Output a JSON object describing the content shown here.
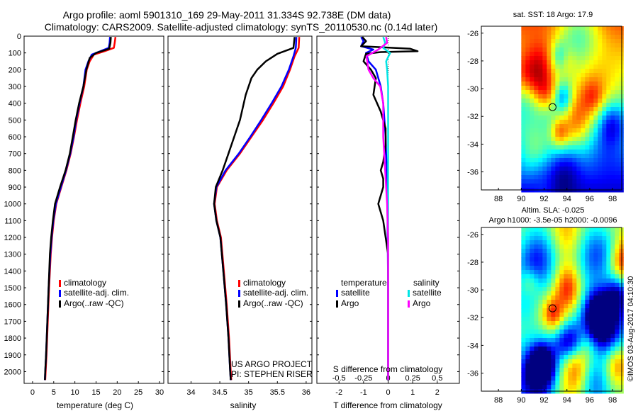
{
  "title_line1": "Argo profile: aoml 5901310_169 29-May-2011 31.334S 92.738E (DM data)",
  "title_line2": "Climatology: CARS2009. Satellite-adjusted climatology: synTS_20110530.nc (0.14d later)",
  "colors": {
    "clim": "#ff0000",
    "sat": "#0000ff",
    "argo": "#000000",
    "sal_sat": "#00e5e5",
    "sal_argo": "#ff00ff"
  },
  "chart_data": [
    {
      "type": "line",
      "id": "temperature",
      "xlabel": "temperature (deg C)",
      "xlim": [
        -2,
        31
      ],
      "ylim": [
        2070,
        0
      ],
      "xticks": [
        0,
        5,
        10,
        15,
        20,
        25,
        30
      ],
      "yticks": [
        0,
        100,
        200,
        300,
        400,
        500,
        600,
        700,
        800,
        900,
        1000,
        1100,
        1200,
        1300,
        1400,
        1500,
        1600,
        1700,
        1800,
        1900,
        2000
      ],
      "legend": [
        "climatology",
        "satellite-adj. clim.",
        "Argo(..raw -QC)"
      ],
      "series": [
        {
          "name": "climatology",
          "color": "clim",
          "points": [
            [
              19.6,
              5
            ],
            [
              19.4,
              40
            ],
            [
              19.2,
              70
            ],
            [
              17,
              90
            ],
            [
              14.5,
              110
            ],
            [
              13.5,
              150
            ],
            [
              12.8,
              200
            ],
            [
              12.2,
              300
            ],
            [
              11.3,
              400
            ],
            [
              10.5,
              500
            ],
            [
              9.8,
              600
            ],
            [
              9,
              700
            ],
            [
              8,
              800
            ],
            [
              6.8,
              900
            ],
            [
              5.6,
              1000
            ],
            [
              5,
              1100
            ],
            [
              4.6,
              1200
            ],
            [
              4.3,
              1300
            ],
            [
              3.9,
              1500
            ],
            [
              3.6,
              1700
            ],
            [
              3.3,
              1900
            ],
            [
              3.1,
              2000
            ],
            [
              3,
              2050
            ]
          ]
        },
        {
          "name": "satellite-adj. clim.",
          "color": "sat",
          "points": [
            [
              18.3,
              5
            ],
            [
              18.2,
              40
            ],
            [
              18,
              70
            ],
            [
              16,
              90
            ],
            [
              14,
              110
            ],
            [
              13.2,
              150
            ],
            [
              12.5,
              200
            ],
            [
              12,
              300
            ],
            [
              11.1,
              400
            ],
            [
              10.3,
              500
            ],
            [
              9.7,
              600
            ],
            [
              8.9,
              700
            ],
            [
              7.9,
              800
            ],
            [
              6.7,
              900
            ],
            [
              5.5,
              1000
            ],
            [
              4.9,
              1100
            ],
            [
              4.5,
              1200
            ],
            [
              4.2,
              1300
            ],
            [
              3.8,
              1500
            ],
            [
              3.5,
              1700
            ],
            [
              3.2,
              1900
            ],
            [
              3,
              2000
            ],
            [
              2.9,
              2050
            ]
          ]
        },
        {
          "name": "Argo(..raw -QC)",
          "color": "argo",
          "points": [
            [
              18.5,
              5
            ],
            [
              18.4,
              40
            ],
            [
              18.1,
              75
            ],
            [
              15,
              100
            ],
            [
              13.5,
              130
            ],
            [
              12.7,
              200
            ],
            [
              12,
              300
            ],
            [
              11,
              400
            ],
            [
              10.2,
              500
            ],
            [
              9.5,
              600
            ],
            [
              8.8,
              700
            ],
            [
              7.8,
              800
            ],
            [
              6.5,
              900
            ],
            [
              5.3,
              1000
            ],
            [
              4.8,
              1100
            ],
            [
              4.4,
              1200
            ],
            [
              4.1,
              1300
            ],
            [
              3.8,
              1500
            ],
            [
              3.5,
              1700
            ],
            [
              3.2,
              1900
            ],
            [
              3,
              2000
            ],
            [
              2.9,
              2050
            ]
          ]
        }
      ]
    },
    {
      "type": "line",
      "id": "salinity",
      "xlabel": "salinity",
      "xlim": [
        33.6,
        36.1
      ],
      "ylim": [
        2070,
        0
      ],
      "xticks": [
        34,
        34.5,
        35,
        35.5,
        36
      ],
      "legend": [
        "climatology",
        "satellite-adj. clim.",
        "Argo(..raw -QC)"
      ],
      "series": [
        {
          "name": "climatology",
          "color": "clim",
          "points": [
            [
              35.88,
              5
            ],
            [
              35.87,
              70
            ],
            [
              35.8,
              120
            ],
            [
              35.72,
              200
            ],
            [
              35.6,
              300
            ],
            [
              35.43,
              400
            ],
            [
              35.25,
              500
            ],
            [
              35.05,
              600
            ],
            [
              34.85,
              700
            ],
            [
              34.62,
              800
            ],
            [
              34.45,
              900
            ],
            [
              34.41,
              1000
            ],
            [
              34.45,
              1100
            ],
            [
              34.52,
              1200
            ],
            [
              34.57,
              1400
            ],
            [
              34.62,
              1600
            ],
            [
              34.66,
              1800
            ],
            [
              34.69,
              2000
            ],
            [
              34.7,
              2050
            ]
          ]
        },
        {
          "name": "satellite-adj. clim.",
          "color": "sat",
          "points": [
            [
              35.83,
              5
            ],
            [
              35.82,
              70
            ],
            [
              35.78,
              120
            ],
            [
              35.7,
              200
            ],
            [
              35.57,
              300
            ],
            [
              35.4,
              400
            ],
            [
              35.22,
              500
            ],
            [
              35.03,
              600
            ],
            [
              34.83,
              700
            ],
            [
              34.6,
              800
            ],
            [
              34.44,
              900
            ],
            [
              34.4,
              1000
            ],
            [
              34.44,
              1100
            ],
            [
              34.51,
              1200
            ],
            [
              34.56,
              1400
            ],
            [
              34.61,
              1600
            ],
            [
              34.65,
              1800
            ],
            [
              34.68,
              2000
            ],
            [
              34.69,
              2050
            ]
          ]
        },
        {
          "name": "Argo(..raw -QC)",
          "color": "argo",
          "points": [
            [
              35.8,
              5
            ],
            [
              35.78,
              70
            ],
            [
              35.5,
              105
            ],
            [
              35.3,
              150
            ],
            [
              35.15,
              200
            ],
            [
              35.05,
              250
            ],
            [
              34.95,
              350
            ],
            [
              34.85,
              500
            ],
            [
              34.75,
              600
            ],
            [
              34.65,
              700
            ],
            [
              34.55,
              800
            ],
            [
              34.43,
              900
            ],
            [
              34.4,
              1000
            ],
            [
              34.44,
              1100
            ],
            [
              34.51,
              1200
            ],
            [
              34.56,
              1400
            ],
            [
              34.61,
              1600
            ],
            [
              34.65,
              1800
            ],
            [
              34.68,
              2000
            ],
            [
              34.69,
              2050
            ]
          ]
        }
      ]
    },
    {
      "type": "line",
      "id": "difference",
      "xlabel": "T difference from climatology",
      "x2label": "S difference from climatology",
      "xlim": [
        -2.9,
        2.9
      ],
      "x2lim": [
        -0.725,
        0.725
      ],
      "ylim": [
        2070,
        0
      ],
      "xticks": [
        -2,
        -1,
        0,
        1,
        2
      ],
      "x2ticks": [
        -0.5,
        -0.25,
        0,
        0.25,
        0.5
      ],
      "x2ticklabels": [
        "-0.5",
        "-0.25",
        "0",
        "0.25",
        "0.5"
      ],
      "legend_headers": [
        "temperature",
        "salinity"
      ],
      "legend": [
        "satellite",
        "Argo",
        "satellite",
        "Argo"
      ],
      "series": [
        {
          "name": "T satellite",
          "color": "sat",
          "axis": "x",
          "points": [
            [
              -1.1,
              5
            ],
            [
              -1,
              30
            ],
            [
              -1.1,
              60
            ],
            [
              -0.6,
              80
            ],
            [
              -0.9,
              100
            ],
            [
              -0.8,
              150
            ],
            [
              -0.5,
              200
            ],
            [
              -0.3,
              300
            ],
            [
              -0.2,
              400
            ],
            [
              -0.15,
              500
            ],
            [
              -0.1,
              600
            ],
            [
              -0.08,
              700
            ],
            [
              -0.05,
              800
            ],
            [
              -0.03,
              1000
            ],
            [
              0,
              1500
            ],
            [
              0,
              2050
            ]
          ]
        },
        {
          "name": "T Argo",
          "color": "argo",
          "axis": "x",
          "points": [
            [
              -1.05,
              5
            ],
            [
              -0.9,
              30
            ],
            [
              -1.1,
              60
            ],
            [
              0.9,
              75
            ],
            [
              1.2,
              90
            ],
            [
              -0.3,
              95
            ],
            [
              -0.9,
              105
            ],
            [
              -1.0,
              150
            ],
            [
              -0.7,
              200
            ],
            [
              -0.5,
              250
            ],
            [
              -0.6,
              350
            ],
            [
              -0.3,
              450
            ],
            [
              -0.1,
              550
            ],
            [
              -0.1,
              650
            ],
            [
              -0.2,
              750
            ],
            [
              -0.3,
              800
            ],
            [
              -0.2,
              850
            ],
            [
              -0.2,
              900
            ],
            [
              -0.4,
              1000
            ],
            [
              -0.2,
              1100
            ],
            [
              -0.1,
              1200
            ],
            [
              0,
              1300
            ],
            [
              0,
              1500
            ],
            [
              0,
              2050
            ]
          ]
        },
        {
          "name": "S satellite",
          "color": "sal_sat",
          "axis": "x2",
          "points": [
            [
              -0.05,
              5
            ],
            [
              -0.03,
              40
            ],
            [
              -0.05,
              70
            ],
            [
              0.02,
              100
            ],
            [
              -0.02,
              150
            ],
            [
              -0.01,
              200
            ],
            [
              0,
              300
            ],
            [
              0,
              2050
            ]
          ]
        },
        {
          "name": "S Argo",
          "color": "sal_argo",
          "axis": "x2",
          "points": [
            [
              -0.02,
              5
            ],
            [
              -0.01,
              40
            ],
            [
              -0.1,
              80
            ],
            [
              -0.22,
              120
            ],
            [
              -0.2,
              200
            ],
            [
              -0.15,
              250
            ],
            [
              -0.08,
              300
            ],
            [
              -0.05,
              400
            ],
            [
              -0.05,
              600
            ],
            [
              -0.04,
              700
            ],
            [
              -0.03,
              800
            ],
            [
              -0.02,
              900
            ],
            [
              -0.01,
              1000
            ],
            [
              0,
              1200
            ],
            [
              0,
              2050
            ]
          ]
        }
      ]
    }
  ],
  "maps": [
    {
      "id": "sst",
      "title": "sat. SST: 18 Argo: 17.9",
      "xticks": [
        88,
        90,
        92,
        94,
        96,
        98
      ],
      "yticks": [
        -26,
        -28,
        -30,
        -32,
        -34,
        -36
      ],
      "marker_lon": 92.74,
      "marker_lat": -31.33
    },
    {
      "id": "sla",
      "title_line1": "Altim. SLA: -0.025",
      "title_line2": "Argo h1000: -3.5e-05 h2000: -0.0096",
      "xticks": [
        88,
        90,
        92,
        94,
        96,
        98
      ],
      "yticks": [
        -26,
        -28,
        -30,
        -32,
        -34,
        -36
      ],
      "marker_lon": 92.74,
      "marker_lat": -31.33
    }
  ],
  "footer_text": "US ARGO PROJECT",
  "pi_text": "PI: STEPHEN RISER",
  "credit": "©IMOS 03-Aug-2017 04:10:30"
}
